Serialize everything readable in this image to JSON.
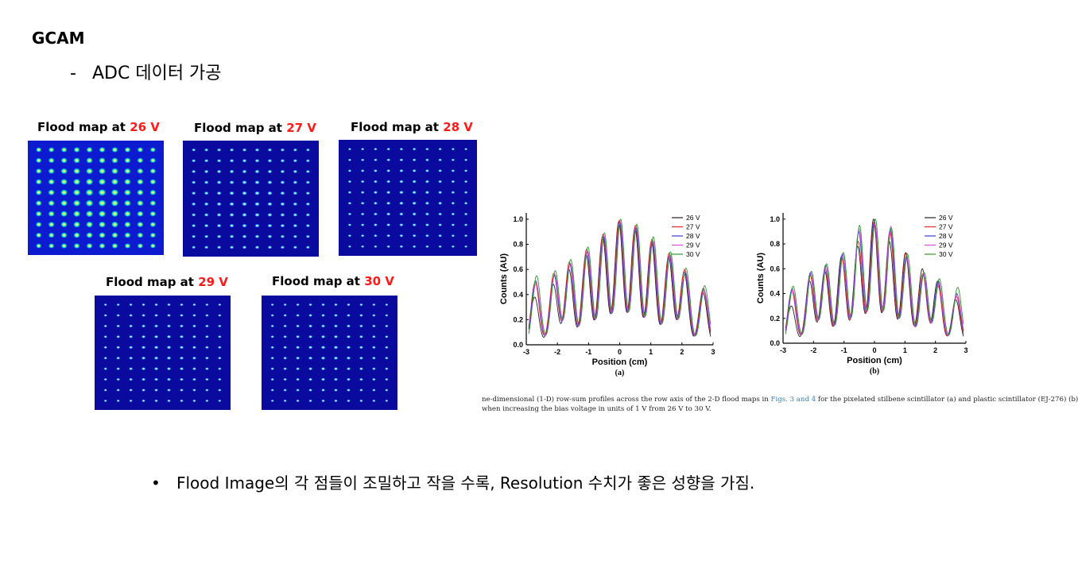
{
  "slide": {
    "title": "GCAM",
    "subtitle": "ADC 데이터 가공",
    "subtitle_marker": "-",
    "bullet_marker": "•",
    "bullet": "Flood Image의 각 점들이 조밀하고 작을 수록, Resolution 수치가 좋은 성향을 가짐."
  },
  "flood_maps": [
    {
      "prefix": "Flood map at ",
      "voltage": "26 V"
    },
    {
      "prefix": "Flood map at ",
      "voltage": "27 V"
    },
    {
      "prefix": "Flood map at ",
      "voltage": "28 V"
    },
    {
      "prefix": "Flood map at ",
      "voltage": "29 V"
    },
    {
      "prefix": "Flood map at ",
      "voltage": "30 V"
    }
  ],
  "caption": {
    "line1_a": "ne-dimensional (1-D) row-sum profiles across the row axis of the 2-D flood maps in ",
    "line1_link": "Figs. 3 and 4",
    "line1_b": " for the pixelated stilbene scintillator (a) and plastic scintillator (EJ-276) (b)",
    "line2": "when increasing the bias voltage in units of 1 V from 26 V to 30 V."
  },
  "colors": {
    "accent_red": "#ff1a1a",
    "map_background": "#0a0a9e",
    "series": [
      "#222222",
      "#e8262a",
      "#3b3bd6",
      "#e04be0",
      "#2e9a2e"
    ]
  },
  "chart_data": [
    {
      "type": "line",
      "panel_label": "(a)",
      "xlabel": "Position (cm)",
      "ylabel": "Counts (AU)",
      "xlim": [
        -3,
        3
      ],
      "ylim": [
        0,
        1.05
      ],
      "xticks": [
        -3,
        -2,
        -1,
        0,
        1,
        2,
        3
      ],
      "yticks": [
        0.0,
        0.2,
        0.4,
        0.6,
        0.8,
        1.0
      ],
      "legend_position": "top-right",
      "peak_positions": [
        -2.7,
        -2.1,
        -1.6,
        -1.05,
        -0.52,
        0.0,
        0.52,
        1.05,
        1.6,
        2.1,
        2.7
      ],
      "series": [
        {
          "name": "26 V",
          "peaks": [
            0.38,
            0.48,
            0.6,
            0.72,
            0.86,
            0.98,
            0.93,
            0.82,
            0.7,
            0.58,
            0.42
          ]
        },
        {
          "name": "27 V",
          "peaks": [
            0.5,
            0.57,
            0.66,
            0.76,
            0.88,
            0.99,
            0.95,
            0.84,
            0.73,
            0.6,
            0.45
          ]
        },
        {
          "name": "28 V",
          "peaks": [
            0.51,
            0.55,
            0.64,
            0.74,
            0.86,
            0.97,
            0.93,
            0.82,
            0.71,
            0.57,
            0.44
          ]
        },
        {
          "name": "29 V",
          "peaks": [
            0.49,
            0.56,
            0.65,
            0.75,
            0.87,
            0.98,
            0.94,
            0.83,
            0.72,
            0.58,
            0.43
          ]
        },
        {
          "name": "30 V",
          "peaks": [
            0.55,
            0.59,
            0.68,
            0.78,
            0.89,
            1.0,
            0.96,
            0.86,
            0.74,
            0.61,
            0.47
          ]
        }
      ]
    },
    {
      "type": "line",
      "panel_label": "(b)",
      "xlabel": "Position (cm)",
      "ylabel": "Counts (AU)",
      "xlim": [
        -3,
        3
      ],
      "ylim": [
        0,
        1.05
      ],
      "xticks": [
        -3,
        -2,
        -1,
        0,
        1,
        2,
        3
      ],
      "yticks": [
        0.0,
        0.2,
        0.4,
        0.6,
        0.8,
        1.0
      ],
      "legend_position": "top-right",
      "peak_positions": [
        -2.7,
        -2.1,
        -1.6,
        -1.05,
        -0.52,
        0.0,
        0.52,
        1.05,
        1.6,
        2.1,
        2.7
      ],
      "series": [
        {
          "name": "26 V",
          "peaks": [
            0.3,
            0.5,
            0.58,
            0.7,
            0.78,
            1.0,
            0.82,
            0.73,
            0.6,
            0.5,
            0.35
          ]
        },
        {
          "name": "27 V",
          "peaks": [
            0.42,
            0.55,
            0.6,
            0.68,
            0.82,
            0.98,
            0.9,
            0.73,
            0.56,
            0.46,
            0.38
          ]
        },
        {
          "name": "28 V",
          "peaks": [
            0.44,
            0.57,
            0.63,
            0.72,
            0.9,
            0.98,
            0.92,
            0.7,
            0.55,
            0.5,
            0.4
          ]
        },
        {
          "name": "29 V",
          "peaks": [
            0.43,
            0.56,
            0.62,
            0.71,
            0.92,
            0.96,
            0.94,
            0.68,
            0.55,
            0.48,
            0.39
          ]
        },
        {
          "name": "30 V",
          "peaks": [
            0.46,
            0.58,
            0.64,
            0.73,
            0.95,
            1.0,
            0.93,
            0.72,
            0.57,
            0.52,
            0.45
          ]
        }
      ]
    }
  ]
}
